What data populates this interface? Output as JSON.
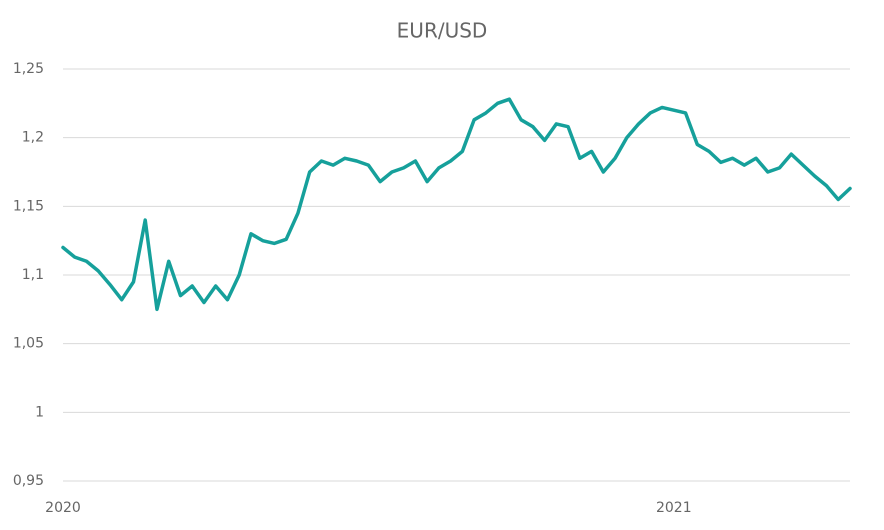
{
  "chart_data": {
    "type": "line",
    "title": "EUR/USD",
    "categories": [
      "2020",
      null,
      null,
      null,
      null,
      null,
      null,
      null,
      null,
      null,
      null,
      null,
      null,
      null,
      null,
      null,
      null,
      null,
      null,
      null,
      null,
      null,
      null,
      null,
      null,
      null,
      null,
      null,
      null,
      null,
      null,
      null,
      null,
      null,
      null,
      null,
      null,
      null,
      null,
      null,
      null,
      null,
      null,
      null,
      null,
      null,
      null,
      null,
      null,
      null,
      null,
      null,
      "2021",
      null,
      null,
      null,
      null,
      null,
      null,
      null,
      null,
      null,
      null,
      null,
      null,
      null,
      null,
      null
    ],
    "series": [
      {
        "name": "EUR/USD",
        "color": "#16a09b",
        "values": [
          1.12,
          1.113,
          1.11,
          1.103,
          1.093,
          1.082,
          1.095,
          1.14,
          1.075,
          1.11,
          1.085,
          1.092,
          1.08,
          1.092,
          1.082,
          1.1,
          1.13,
          1.125,
          1.123,
          1.126,
          1.145,
          1.175,
          1.183,
          1.18,
          1.185,
          1.183,
          1.18,
          1.168,
          1.175,
          1.178,
          1.183,
          1.168,
          1.178,
          1.183,
          1.19,
          1.213,
          1.218,
          1.225,
          1.228,
          1.213,
          1.208,
          1.198,
          1.21,
          1.208,
          1.185,
          1.19,
          1.175,
          1.185,
          1.2,
          1.21,
          1.218,
          1.222,
          1.22,
          1.218,
          1.195,
          1.19,
          1.182,
          1.185,
          1.18,
          1.185,
          1.175,
          1.178,
          1.188,
          1.18,
          1.172,
          1.165,
          1.155,
          1.163
        ]
      }
    ],
    "ylim": [
      0.95,
      1.25
    ],
    "yticks": [
      {
        "value": 0.95,
        "label": "0,95"
      },
      1,
      {
        "value": 1.05,
        "label": "1,05"
      },
      {
        "value": 1.1,
        "label": "1,1"
      },
      {
        "value": 1.15,
        "label": "1,15"
      },
      {
        "value": 1.2,
        "label": "1,2"
      },
      {
        "value": 1.25,
        "label": "1,25"
      }
    ],
    "grid": true
  }
}
